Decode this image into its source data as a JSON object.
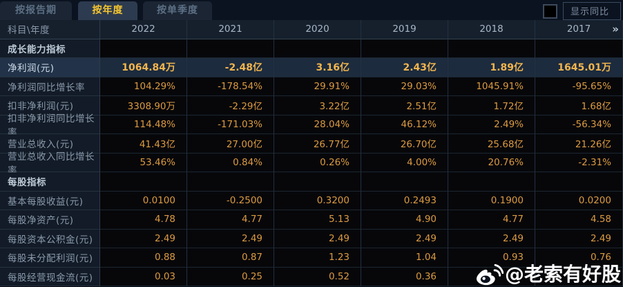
{
  "tabs": [
    {
      "label": "按报告期",
      "active": false
    },
    {
      "label": "按年度",
      "active": true
    },
    {
      "label": "按单季度",
      "active": false
    }
  ],
  "controls": {
    "show_yoy_label": "显示同比",
    "checkbox_checked": false
  },
  "table": {
    "corner_label": "科目\\年度",
    "years": [
      "2022",
      "2021",
      "2020",
      "2019",
      "2018",
      "2017"
    ],
    "more_icon": "»",
    "rows": [
      {
        "type": "section",
        "label": "成长能力指标",
        "values": [
          "",
          "",
          "",
          "",
          "",
          ""
        ]
      },
      {
        "type": "data",
        "label": "净利润(元)",
        "highlight": true,
        "values": [
          "1064.84万",
          "-2.48亿",
          "3.16亿",
          "2.43亿",
          "1.89亿",
          "1645.01万"
        ]
      },
      {
        "type": "data",
        "label": "净利润同比增长率",
        "values": [
          "104.29%",
          "-178.54%",
          "29.91%",
          "29.03%",
          "1045.91%",
          "-95.65%"
        ]
      },
      {
        "type": "data",
        "label": "扣非净利润(元)",
        "values": [
          "3308.90万",
          "-2.29亿",
          "3.22亿",
          "2.51亿",
          "1.72亿",
          "1.68亿"
        ]
      },
      {
        "type": "data",
        "label": "扣非净利润同比增长率",
        "values": [
          "114.48%",
          "-171.03%",
          "28.04%",
          "46.12%",
          "2.49%",
          "-56.34%"
        ]
      },
      {
        "type": "data",
        "label": "营业总收入(元)",
        "values": [
          "41.43亿",
          "27.00亿",
          "26.77亿",
          "26.70亿",
          "25.68亿",
          "21.26亿"
        ]
      },
      {
        "type": "data",
        "label": "营业总收入同比增长率",
        "values": [
          "53.46%",
          "0.84%",
          "0.26%",
          "4.00%",
          "20.76%",
          "-2.31%"
        ]
      },
      {
        "type": "section",
        "label": "每股指标",
        "values": [
          "",
          "",
          "",
          "",
          "",
          ""
        ]
      },
      {
        "type": "data",
        "label": "基本每股收益(元)",
        "values": [
          "0.0100",
          "-0.2500",
          "0.3200",
          "0.2493",
          "0.1900",
          "0.0200"
        ]
      },
      {
        "type": "data",
        "label": "每股净资产(元)",
        "values": [
          "4.78",
          "4.77",
          "5.13",
          "4.90",
          "4.77",
          "4.58"
        ]
      },
      {
        "type": "data",
        "label": "每股资本公积金(元)",
        "values": [
          "2.49",
          "2.49",
          "2.49",
          "2.49",
          "2.49",
          "2.49"
        ]
      },
      {
        "type": "data",
        "label": "每股未分配利润(元)",
        "values": [
          "0.88",
          "0.87",
          "1.23",
          "1.04",
          "0.93",
          "0.76"
        ]
      },
      {
        "type": "data",
        "label": "每股经营现金流(元)",
        "values": [
          "0.03",
          "0.25",
          "0.52",
          "0.36",
          "",
          ""
        ]
      }
    ]
  },
  "watermark": {
    "icon": "weibo-icon",
    "text": "@老索有好股"
  },
  "colors": {
    "active_tab_text": "#f5c62f",
    "value_orange": "#dc9b41",
    "highlight_row_bg": "#1c2b3e",
    "header_bg": "#16202d",
    "page_bg": "#0a111c"
  }
}
